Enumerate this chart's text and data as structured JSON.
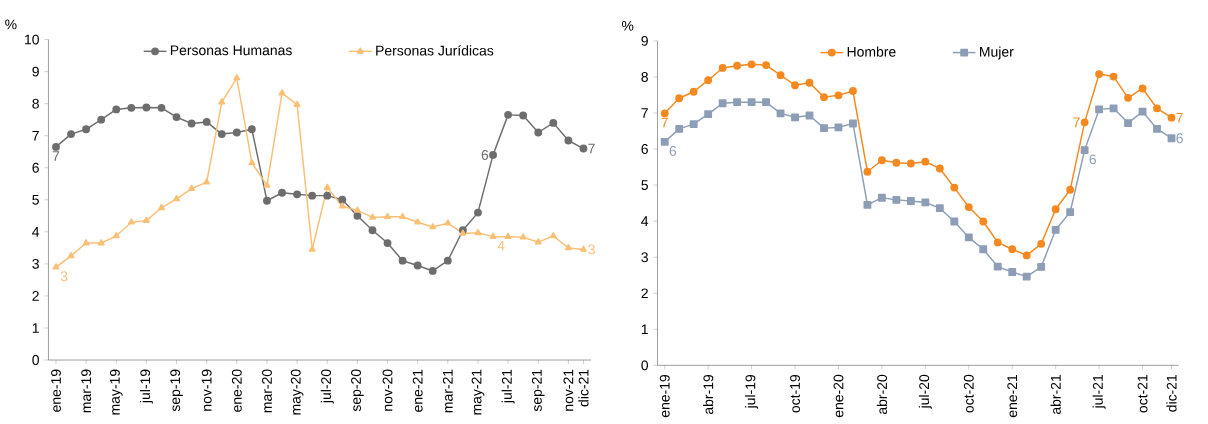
{
  "chart_data": [
    {
      "type": "line",
      "ylabel": "%",
      "legend": "top",
      "ylim": [
        0,
        10
      ],
      "yticks": [
        0,
        1,
        2,
        3,
        4,
        5,
        6,
        7,
        8,
        9,
        10
      ],
      "categories": [
        "ene-19",
        null,
        "mar-19",
        null,
        "may-19",
        null,
        "jul-19",
        null,
        "sep-19",
        null,
        "nov-19",
        null,
        "ene-20",
        null,
        "mar-20",
        null,
        "may-20",
        null,
        "jul-20",
        null,
        "sep-20",
        null,
        "nov-20",
        null,
        "ene-21",
        null,
        "mar-21",
        null,
        "may-21",
        null,
        "jul-21",
        null,
        "sep-21",
        null,
        "nov-21",
        "dic-21"
      ],
      "series": [
        {
          "name": "Personas Humanas",
          "color": "#6d6d6d",
          "marker": "circle",
          "values": [
            6.65,
            7.05,
            7.2,
            7.5,
            7.82,
            7.87,
            7.88,
            7.87,
            7.58,
            7.38,
            7.43,
            7.05,
            7.1,
            7.2,
            4.97,
            5.22,
            5.17,
            5.13,
            5.13,
            5.0,
            4.5,
            4.05,
            3.65,
            3.1,
            2.95,
            2.78,
            3.1,
            4.05,
            4.6,
            6.4,
            7.65,
            7.63,
            7.1,
            7.4,
            6.85,
            6.6
          ],
          "value_labels": [
            "7",
            null,
            null,
            null,
            null,
            null,
            null,
            null,
            null,
            null,
            null,
            null,
            null,
            null,
            null,
            null,
            null,
            null,
            null,
            null,
            null,
            null,
            null,
            null,
            null,
            null,
            null,
            null,
            null,
            "6",
            null,
            null,
            null,
            null,
            null,
            "7"
          ]
        },
        {
          "name": "Personas Jurídicas",
          "color": "#fbbf74",
          "marker": "triangle",
          "values": [
            2.9,
            3.25,
            3.65,
            3.65,
            3.87,
            4.3,
            4.35,
            4.75,
            5.03,
            5.35,
            5.55,
            8.05,
            8.8,
            6.15,
            5.45,
            8.33,
            7.97,
            3.45,
            5.38,
            4.8,
            4.67,
            4.45,
            4.47,
            4.47,
            4.3,
            4.15,
            4.27,
            3.95,
            3.97,
            3.85,
            3.85,
            3.83,
            3.68,
            3.87,
            3.5,
            3.45
          ],
          "value_labels": [
            "3",
            null,
            null,
            null,
            null,
            null,
            null,
            null,
            null,
            null,
            null,
            null,
            null,
            null,
            null,
            null,
            null,
            null,
            null,
            null,
            null,
            null,
            null,
            null,
            null,
            null,
            null,
            null,
            null,
            "4",
            null,
            null,
            null,
            null,
            null,
            "3"
          ]
        }
      ]
    },
    {
      "type": "line",
      "ylabel": "%",
      "legend": "top",
      "ylim": [
        0,
        9
      ],
      "yticks": [
        0,
        1,
        2,
        3,
        4,
        5,
        6,
        7,
        8,
        9
      ],
      "categories": [
        "ene-19",
        null,
        null,
        "abr-19",
        null,
        null,
        "jul-19",
        null,
        null,
        "oct-19",
        null,
        null,
        "ene-20",
        null,
        null,
        "abr-20",
        null,
        null,
        "jul-20",
        null,
        null,
        "oct-20",
        null,
        null,
        "ene-21",
        null,
        null,
        "abr-21",
        null,
        null,
        "jul-21",
        null,
        null,
        "oct-21",
        null,
        "dic-21"
      ],
      "series": [
        {
          "name": "Hombre",
          "color": "#f5891f",
          "marker": "circle",
          "values": [
            6.99,
            7.41,
            7.59,
            7.91,
            8.25,
            8.31,
            8.35,
            8.33,
            8.05,
            7.77,
            7.84,
            7.44,
            7.49,
            7.61,
            5.37,
            5.69,
            5.62,
            5.6,
            5.65,
            5.46,
            4.93,
            4.39,
            3.99,
            3.41,
            3.22,
            3.05,
            3.37,
            4.33,
            4.87,
            6.74,
            8.08,
            8.01,
            7.42,
            7.68,
            7.13,
            6.87
          ],
          "value_labels": [
            "7",
            null,
            null,
            null,
            null,
            null,
            null,
            null,
            null,
            null,
            null,
            null,
            null,
            null,
            null,
            null,
            null,
            null,
            null,
            null,
            null,
            null,
            null,
            null,
            null,
            null,
            null,
            null,
            null,
            "7",
            null,
            null,
            null,
            null,
            null,
            "7"
          ]
        },
        {
          "name": "Mujer",
          "color": "#8c9db5",
          "marker": "square",
          "values": [
            6.2,
            6.56,
            6.69,
            6.97,
            7.27,
            7.3,
            7.3,
            7.3,
            6.99,
            6.88,
            6.93,
            6.58,
            6.6,
            6.71,
            4.45,
            4.65,
            4.59,
            4.56,
            4.52,
            4.36,
            3.99,
            3.55,
            3.22,
            2.74,
            2.59,
            2.46,
            2.73,
            3.76,
            4.25,
            5.97,
            7.1,
            7.13,
            6.72,
            7.04,
            6.56,
            6.3
          ],
          "value_labels": [
            "6",
            null,
            null,
            null,
            null,
            null,
            null,
            null,
            null,
            null,
            null,
            null,
            null,
            null,
            null,
            null,
            null,
            null,
            null,
            null,
            null,
            null,
            null,
            null,
            null,
            null,
            null,
            null,
            null,
            "6",
            null,
            null,
            null,
            null,
            null,
            "6"
          ]
        }
      ]
    }
  ]
}
